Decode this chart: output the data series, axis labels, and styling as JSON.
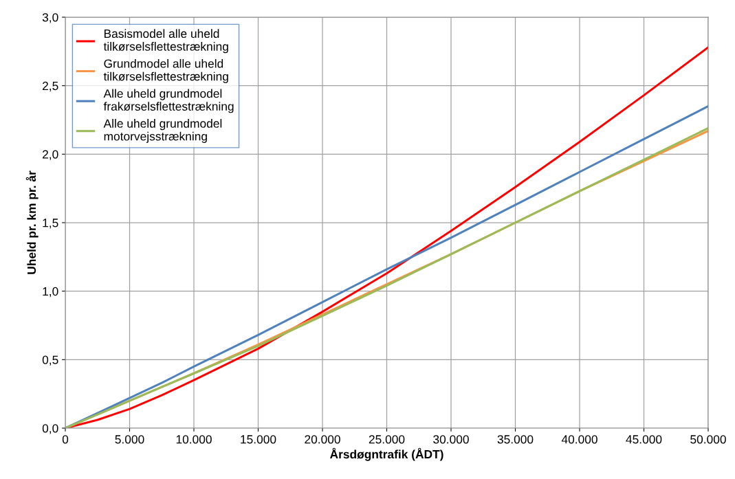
{
  "chart_data": {
    "type": "line",
    "xlabel": "Årsdøgntrafik (ÅDT)",
    "ylabel": "Uheld pr. km pr. år",
    "x": [
      0,
      2500,
      5000,
      7500,
      10000,
      15000,
      20000,
      25000,
      30000,
      35000,
      40000,
      45000,
      50000
    ],
    "series": [
      {
        "name": "Basismodel alle uheld\ntilkørselsflettestrækning",
        "color": "#ff0000",
        "values": [
          0,
          0.06,
          0.14,
          0.24,
          0.35,
          0.58,
          0.85,
          1.13,
          1.44,
          1.76,
          2.09,
          2.43,
          2.78
        ]
      },
      {
        "name": "Grundmodel alle uheld\ntilkørselsflettestrækning",
        "color": "#f79646",
        "values": [
          0,
          0.1,
          0.2,
          0.3,
          0.4,
          0.61,
          0.83,
          1.05,
          1.27,
          1.5,
          1.73,
          1.95,
          2.17
        ]
      },
      {
        "name": "Alle uheld grundmodel\nfrakørselsflettestrækning",
        "color": "#4f81bd",
        "values": [
          0,
          0.11,
          0.22,
          0.33,
          0.45,
          0.68,
          0.92,
          1.16,
          1.39,
          1.63,
          1.87,
          2.11,
          2.35
        ]
      },
      {
        "name": "Alle uheld grundmodel\nmotorvejsstrækning",
        "color": "#9bbb59",
        "values": [
          0,
          0.1,
          0.2,
          0.3,
          0.4,
          0.6,
          0.82,
          1.04,
          1.27,
          1.5,
          1.73,
          1.96,
          2.19
        ]
      }
    ],
    "xlim": [
      0,
      50000
    ],
    "ylim": [
      0,
      3
    ],
    "xticks": [
      0,
      {
        "value": 5000,
        "label": "5.000"
      },
      {
        "value": 10000,
        "label": "10.000"
      },
      {
        "value": 15000,
        "label": "15.000"
      },
      {
        "value": 20000,
        "label": "20.000"
      },
      {
        "value": 25000,
        "label": "25.000"
      },
      {
        "value": 30000,
        "label": "30.000"
      },
      {
        "value": 35000,
        "label": "35.000"
      },
      {
        "value": 40000,
        "label": "40.000"
      },
      {
        "value": 45000,
        "label": "45.000"
      },
      {
        "value": 50000,
        "label": "50.000"
      }
    ],
    "yticks": [
      {
        "value": 0,
        "label": "0,0"
      },
      {
        "value": 0.5,
        "label": "0,5"
      },
      {
        "value": 1,
        "label": "1,0"
      },
      {
        "value": 1.5,
        "label": "1,5"
      },
      {
        "value": 2,
        "label": "2,0"
      },
      {
        "value": 2.5,
        "label": "2,5"
      },
      {
        "value": 3,
        "label": "3,0"
      }
    ],
    "grid": true,
    "legend": "top left"
  }
}
